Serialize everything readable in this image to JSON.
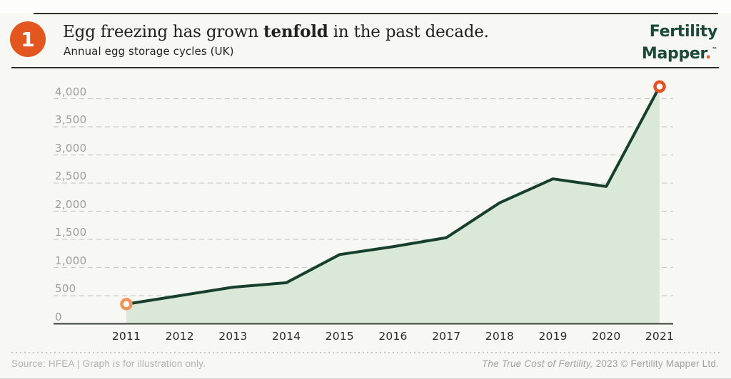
{
  "header": {
    "badge": "1",
    "title_prefix": "Egg freezing has grown ",
    "title_bold": "tenfold",
    "title_suffix": " in the past decade.",
    "subtitle": "Annual egg storage cycles (UK)"
  },
  "logo": {
    "line1": "Fertility",
    "line2": "Mapper",
    "dot": ".",
    "tm": "™"
  },
  "chart_data": {
    "type": "area",
    "title": "Egg freezing has grown tenfold in the past decade.",
    "subtitle": "Annual egg storage cycles (UK)",
    "categories": [
      "2011",
      "2012",
      "2013",
      "2014",
      "2015",
      "2016",
      "2017",
      "2018",
      "2019",
      "2020",
      "2021"
    ],
    "values": [
      350,
      500,
      650,
      730,
      1230,
      1370,
      1530,
      2150,
      2575,
      2440,
      4215
    ],
    "ylim": [
      0,
      4300
    ],
    "ytick_values": [
      0,
      500,
      1000,
      1500,
      2000,
      2500,
      3000,
      3500,
      4000
    ],
    "ytick_labels": [
      "0",
      "500",
      "1,000",
      "1,500",
      "2,000",
      "2,500",
      "3,000",
      "3,500",
      "4,000"
    ],
    "grid": "dashed horizontal",
    "legend": "none",
    "colors": {
      "line": "#173f2e",
      "fill": "#d9e8d7",
      "marker_first": "#f0945c",
      "marker_last": "#e65120",
      "axis": "#3a413a",
      "gridline": "#cbcbc8"
    },
    "markers": [
      {
        "category": "2011",
        "value": 350,
        "color": "#f0945c"
      },
      {
        "category": "2021",
        "value": 4215,
        "color": "#e65120"
      }
    ]
  },
  "footer": {
    "left": "Source: HFEA | Graph is for illustration only.",
    "right_italic": "The True Cost of Fertility,",
    "right_rest": " 2023 © Fertility Mapper Ltd."
  }
}
